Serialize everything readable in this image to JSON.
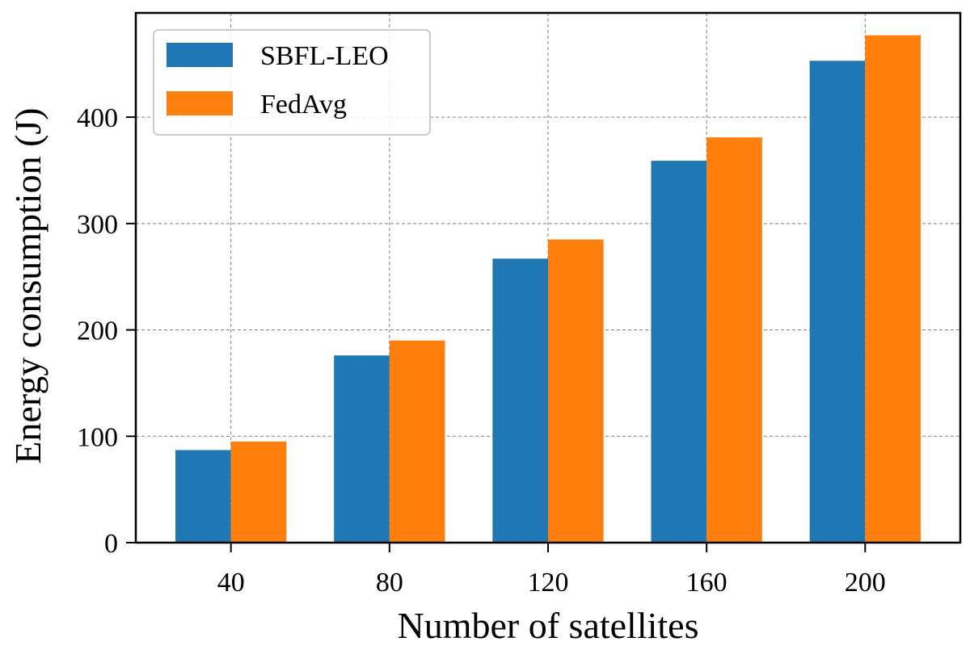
{
  "chart_data": {
    "type": "bar",
    "title": "",
    "xlabel": "Number of satellites",
    "ylabel": "Energy consumption (J)",
    "categories": [
      "40",
      "80",
      "120",
      "160",
      "200"
    ],
    "series": [
      {
        "name": "SBFL-LEO",
        "color": "#1f77b4",
        "values": [
          87,
          176,
          267,
          359,
          453
        ]
      },
      {
        "name": "FedAvg",
        "color": "#ff7f0e",
        "values": [
          95,
          190,
          285,
          381,
          477
        ]
      }
    ],
    "ylim": [
      0,
      498
    ],
    "yticks": [
      0,
      100,
      200,
      300,
      400
    ],
    "grid": true,
    "legend_position": "upper-left"
  }
}
